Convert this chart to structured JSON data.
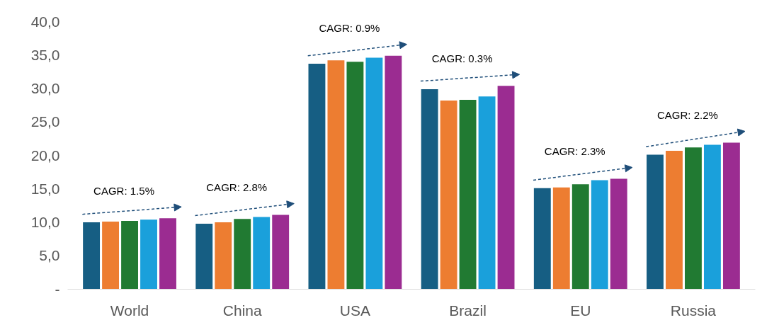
{
  "chart_data": {
    "type": "bar",
    "categories": [
      "World",
      "China",
      "USA",
      "Brazil",
      "EU",
      "Russia"
    ],
    "series": [
      {
        "color": "#165e83",
        "values": [
          10.0,
          9.8,
          33.7,
          29.9,
          15.1,
          20.1
        ]
      },
      {
        "color": "#ed7d31",
        "values": [
          10.1,
          10.0,
          34.2,
          28.2,
          15.2,
          20.7
        ]
      },
      {
        "color": "#217a32",
        "values": [
          10.2,
          10.5,
          34.0,
          28.3,
          15.7,
          21.2
        ]
      },
      {
        "color": "#1aa0db",
        "values": [
          10.4,
          10.8,
          34.6,
          28.8,
          16.3,
          21.6
        ]
      },
      {
        "color": "#9b2c91",
        "values": [
          10.6,
          11.1,
          34.9,
          30.4,
          16.5,
          21.9
        ]
      }
    ],
    "ylim": [
      0,
      40
    ],
    "yticks": [
      {
        "value": 0,
        "label": "-"
      },
      {
        "value": 5,
        "label": "5,0"
      },
      {
        "value": 10,
        "label": "10,0"
      },
      {
        "value": 15,
        "label": "15,0"
      },
      {
        "value": 20,
        "label": "20,0"
      },
      {
        "value": 25,
        "label": "25,0"
      },
      {
        "value": 30,
        "label": "30,0"
      },
      {
        "value": 35,
        "label": "35,0"
      },
      {
        "value": 40,
        "label": "40,0"
      }
    ],
    "grid": false,
    "annotations": [
      "CAGR: 1.5%",
      "CAGR: 2.8%",
      "CAGR: 0.9%",
      "CAGR: 0.3%",
      "CAGR: 2.3%",
      "CAGR: 2.2%"
    ]
  }
}
